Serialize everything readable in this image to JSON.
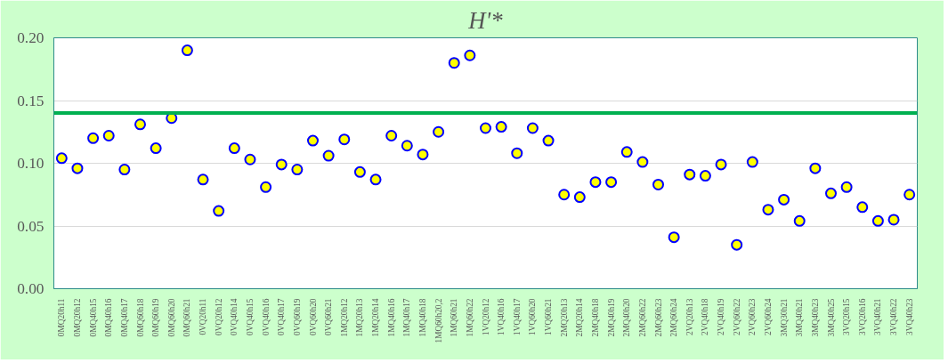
{
  "chart_data": {
    "type": "scatter",
    "title": "H'*",
    "categories": [
      "0MQ20h11",
      "0MQ20h12",
      "0MQ40h15",
      "0MQ40h16",
      "0MQ40h17",
      "0MQ60h18",
      "0MQ60h19",
      "0MQ60h20",
      "0MQ60h21",
      "0VQ20h11",
      "0VQ20h12",
      "0VQ40h14",
      "0VQ40h15",
      "0VQ40h16",
      "0VQ40h17",
      "0VQ60h19",
      "0VQ60h20",
      "0VQ60h21",
      "1MQ20h12",
      "1MQ20h13",
      "1MQ20h14",
      "1MQ40h16",
      "1MQ40h17",
      "1MQ40h18",
      "1MQ60h20,2",
      "1MQ60h21",
      "1MQ60h22",
      "1VQ20h12",
      "1VQ40h16",
      "1VQ40h17",
      "1VQ60h20",
      "1VQ60h21",
      "2MQ20h13",
      "2MQ20h14",
      "2MQ40h18",
      "2MQ40h19",
      "2MQ40h20",
      "2MQ60h22",
      "2MQ60h23",
      "2MQ60h24",
      "2VQ20h13",
      "2VQ40h18",
      "2VQ40h19",
      "2VQ60h22",
      "2VQ60h23",
      "2VQ60h24",
      "3MQ30h21",
      "3MQ40h21",
      "3MQ40h23",
      "3MQ40h25",
      "3VQ20h15",
      "3VQ20h16",
      "3VQ40h21",
      "3VQ40h22",
      "3VQ40h23"
    ],
    "series": [
      {
        "color": "#ffff00",
        "values": [
          0.104,
          0.096,
          0.12,
          0.122,
          0.095,
          0.131,
          0.112,
          0.136,
          0.19,
          0.087,
          0.062,
          0.112,
          0.103,
          0.081,
          0.099,
          0.095,
          0.118,
          0.106,
          0.119,
          0.093,
          0.087,
          0.122,
          0.114,
          0.107,
          0.125,
          0.18,
          0.186,
          0.128,
          0.129,
          0.108,
          0.128,
          0.118,
          0.075,
          0.073,
          0.085,
          0.085,
          0.109,
          0.101,
          0.083,
          0.041,
          0.091,
          0.09,
          0.099,
          0.035,
          0.101,
          0.063,
          0.071,
          0.054,
          0.096,
          0.076,
          0.081,
          0.065,
          0.054,
          0.055,
          0.075
        ]
      }
    ],
    "marker": "circle",
    "ylim": [
      0,
      0.2
    ],
    "yticks": [
      {
        "value": 0,
        "label": "0.00"
      },
      {
        "value": 0.05,
        "label": "0.05"
      },
      {
        "value": 0.1,
        "label": "0.10"
      },
      {
        "value": 0.15,
        "label": "0.15"
      },
      {
        "value": 0.2,
        "label": "0.20"
      }
    ],
    "grid": "y",
    "ref_lines": [
      {
        "axis": "y",
        "value": 0.14,
        "color": "#00b050"
      }
    ]
  }
}
